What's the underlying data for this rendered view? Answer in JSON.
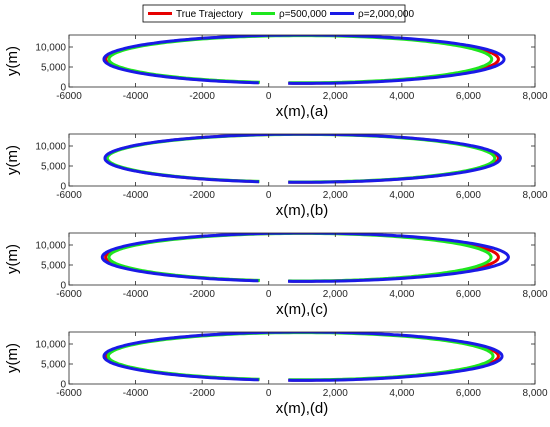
{
  "colors": {
    "true": "#e60000",
    "rho500k": "#1ee61e",
    "rho2m": "#1a1ae6",
    "axis": "#262626",
    "box": "#000000"
  },
  "legend": {
    "entries": [
      {
        "name": "True Trajectory",
        "color": "#e60000"
      },
      {
        "name": "ρ=500,000",
        "color": "#1ee61e"
      },
      {
        "name": "ρ=2,000,000",
        "color": "#1a1ae6"
      }
    ]
  },
  "chart_data": [
    {
      "type": "line",
      "xlabel": "x(m),(a)",
      "ylabel": "y(m)",
      "xlim": [
        -6000,
        8000
      ],
      "ylim": [
        0,
        13000
      ],
      "xticks": [
        -6000,
        -4000,
        -2000,
        0,
        2000,
        4000,
        6000,
        8000
      ],
      "xtick_labels": [
        "-6000",
        "-4000",
        "-2000",
        "0",
        "2,000",
        "4,000",
        "6,000",
        "8,000"
      ],
      "yticks": [
        0,
        5000,
        10000
      ],
      "ytick_labels": [
        "0",
        "5,000",
        "10,000"
      ],
      "series": [
        {
          "name": "True Trajectory",
          "params": {
            "cx": 1000,
            "cy": 6950,
            "ax": 5900,
            "ay": 6000,
            "ex": 0
          }
        },
        {
          "name": "ρ=500,000",
          "params": {
            "cx": 1000,
            "cy": 6950,
            "ax": 5800,
            "ay": 5900,
            "ex": -100
          }
        },
        {
          "name": "ρ=2,000,000",
          "params": {
            "cx": 1000,
            "cy": 6950,
            "ax": 5950,
            "ay": 6050,
            "ex": 120
          }
        }
      ]
    },
    {
      "type": "line",
      "xlabel": "x(m),(b)",
      "ylabel": "y(m)",
      "xlim": [
        -6000,
        8000
      ],
      "ylim": [
        0,
        13000
      ],
      "xticks": [
        -6000,
        -4000,
        -2000,
        0,
        2000,
        4000,
        6000,
        8000
      ],
      "xtick_labels": [
        "-6000",
        "-4000",
        "-2000",
        "0",
        "2,000",
        "4,000",
        "6,000",
        "8,000"
      ],
      "yticks": [
        0,
        5000,
        10000
      ],
      "ytick_labels": [
        "0",
        "5,000",
        "10,000"
      ],
      "series": [
        {
          "name": "True Trajectory",
          "params": {
            "cx": 1000,
            "cy": 6950,
            "ax": 5900,
            "ay": 6000,
            "ex": 0
          }
        },
        {
          "name": "ρ=500,000",
          "params": {
            "cx": 1000,
            "cy": 6950,
            "ax": 5850,
            "ay": 5950,
            "ex": -60
          }
        },
        {
          "name": "ρ=2,000,000",
          "params": {
            "cx": 1000,
            "cy": 6950,
            "ax": 5920,
            "ay": 6020,
            "ex": 40
          }
        }
      ]
    },
    {
      "type": "line",
      "xlabel": "x(m),(c)",
      "ylabel": "y(m)",
      "xlim": [
        -6000,
        8000
      ],
      "ylim": [
        0,
        13000
      ],
      "xticks": [
        -6000,
        -4000,
        -2000,
        0,
        2000,
        4000,
        6000,
        8000
      ],
      "xtick_labels": [
        "-6000",
        "-4000",
        "-2000",
        "0",
        "2,000",
        "4,000",
        "6,000",
        "8,000"
      ],
      "yticks": [
        0,
        5000,
        10000
      ],
      "ytick_labels": [
        "0",
        "5,000",
        "10,000"
      ],
      "series": [
        {
          "name": "True Trajectory",
          "params": {
            "cx": 1000,
            "cy": 6950,
            "ax": 5900,
            "ay": 6000,
            "ex": 0
          }
        },
        {
          "name": "ρ=500,000",
          "params": {
            "cx": 1000,
            "cy": 6950,
            "ax": 5800,
            "ay": 5950,
            "ex": -120
          }
        },
        {
          "name": "ρ=2,000,000",
          "params": {
            "cx": 1000,
            "cy": 6950,
            "ax": 6000,
            "ay": 6050,
            "ex": 200
          }
        }
      ]
    },
    {
      "type": "line",
      "xlabel": "x(m),(d)",
      "ylabel": "y(m)",
      "xlim": [
        -6000,
        8000
      ],
      "ylim": [
        0,
        13000
      ],
      "xticks": [
        -6000,
        -4000,
        -2000,
        0,
        2000,
        4000,
        6000,
        8000
      ],
      "xtick_labels": [
        "-6000",
        "-4000",
        "-2000",
        "0",
        "2,000",
        "4,000",
        "6,000",
        "8,000"
      ],
      "yticks": [
        0,
        5000,
        10000
      ],
      "ytick_labels": [
        "0",
        "5,000",
        "10,000"
      ],
      "series": [
        {
          "name": "True Trajectory",
          "params": {
            "cx": 1000,
            "cy": 6950,
            "ax": 5900,
            "ay": 6000,
            "ex": 0
          }
        },
        {
          "name": "ρ=500,000",
          "params": {
            "cx": 1000,
            "cy": 6950,
            "ax": 5820,
            "ay": 5900,
            "ex": -80
          }
        },
        {
          "name": "ρ=2,000,000",
          "params": {
            "cx": 1000,
            "cy": 6950,
            "ax": 5950,
            "ay": 6050,
            "ex": 60
          }
        }
      ]
    }
  ]
}
